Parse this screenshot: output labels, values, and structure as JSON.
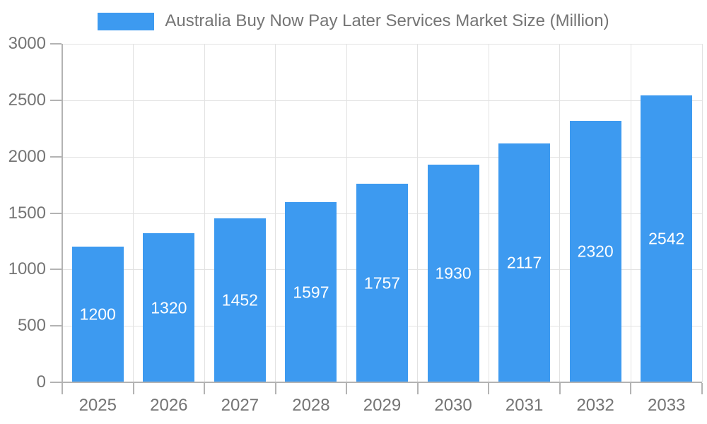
{
  "chart_data": {
    "type": "bar",
    "title": "Australia Buy Now Pay Later Services Market Size (Million)",
    "categories": [
      "2025",
      "2026",
      "2027",
      "2028",
      "2029",
      "2030",
      "2031",
      "2032",
      "2033"
    ],
    "values": [
      1200,
      1320,
      1452,
      1597,
      1757,
      1930,
      2117,
      2320,
      2542
    ],
    "value_labels": [
      "1200",
      "1320",
      "1452",
      "1597",
      "1757",
      "1930",
      "2117",
      "2320",
      "2542"
    ],
    "xlabel": "",
    "ylabel": "",
    "ylim": [
      0,
      3000
    ],
    "yticks": [
      0,
      500,
      1000,
      1500,
      2000,
      2500,
      3000
    ],
    "ytick_labels": [
      "0",
      "500",
      "1000",
      "1500",
      "2000",
      "2500",
      "3000"
    ],
    "grid": true,
    "legend": {
      "position": "top",
      "label": "Australia Buy Now Pay Later Services Market Size (Million)"
    },
    "colors": {
      "bar": "#3d9af0",
      "grid": "#e2e2e2",
      "axis": "#b3b3b3",
      "tick_text": "#757575",
      "value_label_text": "#ffffff",
      "background": "#ffffff"
    }
  }
}
